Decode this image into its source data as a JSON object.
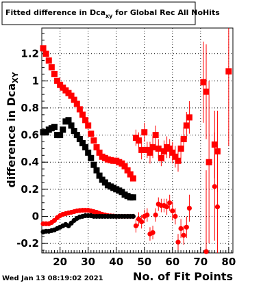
{
  "chart_data": {
    "type": "scatter",
    "title_main": "Fitted difference in Dca",
    "title_sub": "xy",
    "title_rest": " for Global Rec All NoHits",
    "xlabel": "No. of Fit Points",
    "ylabel_main": "difference in Dca",
    "ylabel_sub": "XY",
    "xlim": [
      13.5,
      81.5
    ],
    "ylim": [
      -0.27,
      1.39
    ],
    "xticks": [
      20,
      30,
      40,
      50,
      60,
      70,
      80
    ],
    "yticks": [
      -0.2,
      0,
      0.2,
      0.4,
      0.6,
      0.8,
      1,
      1.2
    ],
    "ytick_labels": [
      "-0.2",
      "0",
      "0.2",
      "0.4",
      "0.6",
      "0.8",
      "1",
      "1.2"
    ],
    "grid": true,
    "series": [
      {
        "color": "#ff0000",
        "marker": "square",
        "points": [
          {
            "x": 14,
            "y": 1.24
          },
          {
            "x": 15,
            "y": 1.2
          },
          {
            "x": 16,
            "y": 1.15
          },
          {
            "x": 17,
            "y": 1.1
          },
          {
            "x": 18,
            "y": 1.05
          },
          {
            "x": 19,
            "y": 1.0
          },
          {
            "x": 20,
            "y": 0.97
          },
          {
            "x": 21,
            "y": 0.95
          },
          {
            "x": 22,
            "y": 0.93
          },
          {
            "x": 23,
            "y": 0.91
          },
          {
            "x": 24,
            "y": 0.89
          },
          {
            "x": 25,
            "y": 0.86
          },
          {
            "x": 26,
            "y": 0.83
          },
          {
            "x": 27,
            "y": 0.79
          },
          {
            "x": 28,
            "y": 0.75
          },
          {
            "x": 29,
            "y": 0.71
          },
          {
            "x": 30,
            "y": 0.67
          },
          {
            "x": 31,
            "y": 0.61
          },
          {
            "x": 32,
            "y": 0.56
          },
          {
            "x": 33,
            "y": 0.51
          },
          {
            "x": 34,
            "y": 0.47
          },
          {
            "x": 35,
            "y": 0.44
          },
          {
            "x": 36,
            "y": 0.43
          },
          {
            "x": 37,
            "y": 0.42
          },
          {
            "x": 38,
            "y": 0.415
          },
          {
            "x": 39,
            "y": 0.41
          },
          {
            "x": 40,
            "y": 0.41
          },
          {
            "x": 41,
            "y": 0.4
          },
          {
            "x": 42,
            "y": 0.39
          },
          {
            "x": 43,
            "y": 0.37
          },
          {
            "x": 44,
            "y": 0.34
          },
          {
            "x": 45,
            "y": 0.31
          },
          {
            "x": 46,
            "y": 0.28
          },
          {
            "x": 47,
            "y": 0.58,
            "err": 0.06
          },
          {
            "x": 48,
            "y": 0.56,
            "err": 0.06
          },
          {
            "x": 49,
            "y": 0.49,
            "err": 0.07
          },
          {
            "x": 50,
            "y": 0.62,
            "err": 0.07
          },
          {
            "x": 51,
            "y": 0.49,
            "err": 0.06
          },
          {
            "x": 52,
            "y": 0.47,
            "err": 0.08
          },
          {
            "x": 53,
            "y": 0.51,
            "err": 0.08
          },
          {
            "x": 54,
            "y": 0.6,
            "err": 0.07
          },
          {
            "x": 55,
            "y": 0.5,
            "err": 0.07
          },
          {
            "x": 56,
            "y": 0.43,
            "err": 0.06
          },
          {
            "x": 57,
            "y": 0.48,
            "err": 0.08
          },
          {
            "x": 58,
            "y": 0.51,
            "err": 0.08
          },
          {
            "x": 59,
            "y": 0.5,
            "err": 0.07
          },
          {
            "x": 60,
            "y": 0.47,
            "err": 0.08
          },
          {
            "x": 61,
            "y": 0.44,
            "err": 0.08
          },
          {
            "x": 62,
            "y": 0.41,
            "err": 0.08
          },
          {
            "x": 63,
            "y": 0.5,
            "err": 0.08
          },
          {
            "x": 64,
            "y": 0.57,
            "err": 0.09
          },
          {
            "x": 65,
            "y": 0.67,
            "err": 0.1
          },
          {
            "x": 66,
            "y": 0.73,
            "err": 0.12
          },
          {
            "x": 71,
            "y": 0.99,
            "err": 0.3
          },
          {
            "x": 72,
            "y": 0.92,
            "err": 0.35
          },
          {
            "x": 73,
            "y": 0.4,
            "err": 0.6
          },
          {
            "x": 75,
            "y": 0.53,
            "err": 0.25
          },
          {
            "x": 76,
            "y": 0.48,
            "err": 0.3
          },
          {
            "x": 80,
            "y": 1.07,
            "err": 0.55
          }
        ]
      },
      {
        "color": "#000000",
        "marker": "square",
        "points": [
          {
            "x": 14,
            "y": 0.62
          },
          {
            "x": 15,
            "y": 0.62
          },
          {
            "x": 16,
            "y": 0.64
          },
          {
            "x": 17,
            "y": 0.65
          },
          {
            "x": 18,
            "y": 0.66
          },
          {
            "x": 19,
            "y": 0.6
          },
          {
            "x": 20,
            "y": 0.6
          },
          {
            "x": 21,
            "y": 0.64
          },
          {
            "x": 22,
            "y": 0.7
          },
          {
            "x": 23,
            "y": 0.71
          },
          {
            "x": 24,
            "y": 0.67
          },
          {
            "x": 25,
            "y": 0.63
          },
          {
            "x": 26,
            "y": 0.6
          },
          {
            "x": 27,
            "y": 0.57
          },
          {
            "x": 28,
            "y": 0.54
          },
          {
            "x": 29,
            "y": 0.51
          },
          {
            "x": 30,
            "y": 0.47
          },
          {
            "x": 31,
            "y": 0.43
          },
          {
            "x": 32,
            "y": 0.38
          },
          {
            "x": 33,
            "y": 0.34
          },
          {
            "x": 34,
            "y": 0.3
          },
          {
            "x": 35,
            "y": 0.27
          },
          {
            "x": 36,
            "y": 0.25
          },
          {
            "x": 37,
            "y": 0.23
          },
          {
            "x": 38,
            "y": 0.22
          },
          {
            "x": 39,
            "y": 0.21
          },
          {
            "x": 40,
            "y": 0.2
          },
          {
            "x": 41,
            "y": 0.19
          },
          {
            "x": 42,
            "y": 0.18
          },
          {
            "x": 43,
            "y": 0.16
          },
          {
            "x": 44,
            "y": 0.15
          },
          {
            "x": 45,
            "y": 0.14
          },
          {
            "x": 46,
            "y": 0.14
          }
        ]
      },
      {
        "color": "#ff0000",
        "marker": "circle",
        "points": [
          {
            "x": 14,
            "y": -0.055
          },
          {
            "x": 15,
            "y": -0.055
          },
          {
            "x": 16,
            "y": -0.055
          },
          {
            "x": 17,
            "y": -0.045
          },
          {
            "x": 18,
            "y": -0.03
          },
          {
            "x": 19,
            "y": -0.01
          },
          {
            "x": 20,
            "y": 0.005
          },
          {
            "x": 21,
            "y": 0.015
          },
          {
            "x": 22,
            "y": 0.02
          },
          {
            "x": 23,
            "y": 0.025
          },
          {
            "x": 24,
            "y": 0.03
          },
          {
            "x": 25,
            "y": 0.035
          },
          {
            "x": 26,
            "y": 0.04
          },
          {
            "x": 27,
            "y": 0.043
          },
          {
            "x": 28,
            "y": 0.045
          },
          {
            "x": 29,
            "y": 0.045
          },
          {
            "x": 30,
            "y": 0.045
          },
          {
            "x": 31,
            "y": 0.04
          },
          {
            "x": 32,
            "y": 0.035
          },
          {
            "x": 33,
            "y": 0.03
          },
          {
            "x": 34,
            "y": 0.022
          },
          {
            "x": 35,
            "y": 0.015
          },
          {
            "x": 36,
            "y": 0.01
          },
          {
            "x": 37,
            "y": 0.005
          },
          {
            "x": 38,
            "y": 0.003
          },
          {
            "x": 39,
            "y": 0.002
          },
          {
            "x": 40,
            "y": 0.0
          },
          {
            "x": 41,
            "y": 0.0
          },
          {
            "x": 42,
            "y": 0.0
          },
          {
            "x": 43,
            "y": 0.0
          },
          {
            "x": 44,
            "y": 0.0
          },
          {
            "x": 45,
            "y": 0.0
          },
          {
            "x": 46,
            "y": 0.0
          },
          {
            "x": 47,
            "y": -0.07,
            "err": 0.05
          },
          {
            "x": 48,
            "y": -0.02,
            "err": 0.05
          },
          {
            "x": 49,
            "y": -0.04,
            "err": 0.05
          },
          {
            "x": 50,
            "y": 0.0,
            "err": 0.05
          },
          {
            "x": 51,
            "y": 0.01,
            "err": 0.05
          },
          {
            "x": 52,
            "y": -0.13,
            "err": 0.05
          },
          {
            "x": 53,
            "y": -0.12,
            "err": 0.05
          },
          {
            "x": 54,
            "y": 0.01,
            "err": 0.05
          },
          {
            "x": 55,
            "y": 0.09,
            "err": 0.05
          },
          {
            "x": 56,
            "y": 0.08,
            "err": 0.05
          },
          {
            "x": 57,
            "y": 0.08,
            "err": 0.05
          },
          {
            "x": 58,
            "y": 0.07,
            "err": 0.06
          },
          {
            "x": 59,
            "y": 0.1,
            "err": 0.06
          },
          {
            "x": 60,
            "y": 0.04,
            "err": 0.07
          },
          {
            "x": 61,
            "y": 0.0,
            "err": 0.06
          },
          {
            "x": 62,
            "y": -0.19,
            "err": 0.06
          },
          {
            "x": 63,
            "y": -0.09,
            "err": 0.07
          },
          {
            "x": 64,
            "y": -0.14,
            "err": 0.07
          },
          {
            "x": 65,
            "y": -0.08,
            "err": 0.08
          },
          {
            "x": 66,
            "y": 0.06,
            "err": 0.1
          },
          {
            "x": 72,
            "y": -0.26,
            "err": 0.6
          },
          {
            "x": 75,
            "y": 0.22,
            "err": 0.4
          },
          {
            "x": 76,
            "y": 0.07,
            "err": 0.4
          }
        ]
      },
      {
        "color": "#000000",
        "marker": "circle",
        "points": [
          {
            "x": 14,
            "y": -0.115
          },
          {
            "x": 15,
            "y": -0.11
          },
          {
            "x": 16,
            "y": -0.11
          },
          {
            "x": 17,
            "y": -0.105
          },
          {
            "x": 18,
            "y": -0.1
          },
          {
            "x": 19,
            "y": -0.09
          },
          {
            "x": 20,
            "y": -0.08
          },
          {
            "x": 21,
            "y": -0.07
          },
          {
            "x": 22,
            "y": -0.06
          },
          {
            "x": 23,
            "y": -0.07
          },
          {
            "x": 24,
            "y": -0.05
          },
          {
            "x": 25,
            "y": -0.03
          },
          {
            "x": 26,
            "y": -0.015
          },
          {
            "x": 27,
            "y": -0.005
          },
          {
            "x": 28,
            "y": 0.0
          },
          {
            "x": 29,
            "y": 0.005
          },
          {
            "x": 30,
            "y": 0.005
          },
          {
            "x": 31,
            "y": 0.005
          },
          {
            "x": 32,
            "y": 0.0
          },
          {
            "x": 33,
            "y": 0.0
          },
          {
            "x": 34,
            "y": 0.0
          },
          {
            "x": 35,
            "y": 0.0
          },
          {
            "x": 36,
            "y": 0.0
          },
          {
            "x": 37,
            "y": 0.0
          },
          {
            "x": 38,
            "y": 0.0
          },
          {
            "x": 39,
            "y": 0.0
          },
          {
            "x": 40,
            "y": 0.0
          },
          {
            "x": 41,
            "y": 0.0
          },
          {
            "x": 42,
            "y": 0.0
          },
          {
            "x": 43,
            "y": 0.0
          },
          {
            "x": 44,
            "y": 0.0
          },
          {
            "x": 45,
            "y": 0.0
          },
          {
            "x": 46,
            "y": 0.0
          }
        ]
      }
    ]
  },
  "footer": {
    "timestamp": "Wed Jan 13 08:19:02 2021"
  }
}
